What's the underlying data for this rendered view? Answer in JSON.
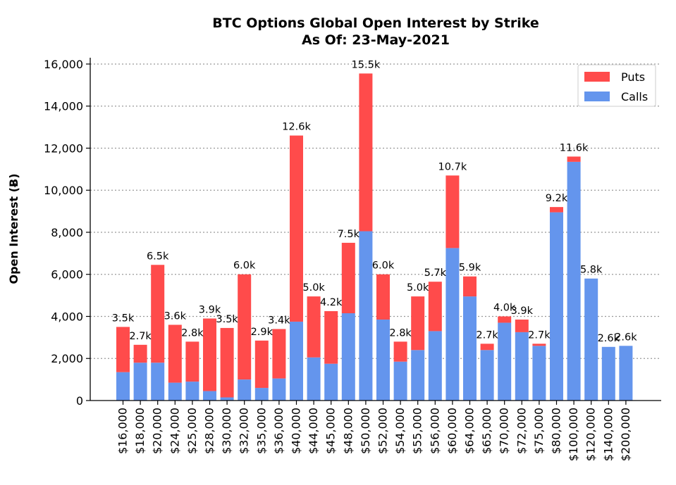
{
  "chart_data": {
    "type": "bar",
    "stacked": true,
    "title": "BTC Options Global Open Interest by Strike",
    "subtitle": "As Of: 23-May-2021",
    "xlabel": "",
    "ylabel": "Open Interest (Ƀ)",
    "ylim": [
      0,
      16300
    ],
    "yticks": [
      0,
      2000,
      4000,
      6000,
      8000,
      10000,
      12000,
      14000,
      16000
    ],
    "ytick_labels": [
      "0",
      "2,000",
      "4,000",
      "6,000",
      "8,000",
      "10,000",
      "12,000",
      "14,000",
      "16,000"
    ],
    "grid": "horizontal dotted",
    "legend_position": "top-right",
    "categories": [
      "$16,000",
      "$18,000",
      "$20,000",
      "$24,000",
      "$25,000",
      "$28,000",
      "$30,000",
      "$32,000",
      "$35,000",
      "$36,000",
      "$40,000",
      "$44,000",
      "$45,000",
      "$48,000",
      "$50,000",
      "$52,000",
      "$54,000",
      "$55,000",
      "$56,000",
      "$60,000",
      "$64,000",
      "$65,000",
      "$70,000",
      "$72,000",
      "$75,000",
      "$80,000",
      "$100,000",
      "$120,000",
      "$140,000",
      "$200,000"
    ],
    "series": [
      {
        "name": "Calls",
        "color": "#6495ED",
        "values": [
          1350,
          1800,
          1800,
          850,
          900,
          450,
          150,
          1000,
          600,
          1050,
          3750,
          2050,
          1750,
          4150,
          8050,
          3850,
          1850,
          2400,
          3300,
          7250,
          4950,
          2400,
          3700,
          3250,
          2600,
          8950,
          11350,
          5800,
          2550,
          2600
        ]
      },
      {
        "name": "Puts",
        "color": "#FF4B4B",
        "values": [
          2150,
          850,
          4650,
          2750,
          1900,
          3450,
          3300,
          5000,
          2250,
          2350,
          8850,
          2900,
          2500,
          3350,
          7500,
          2150,
          950,
          2550,
          2350,
          3450,
          950,
          300,
          300,
          600,
          100,
          250,
          250,
          0,
          0,
          0
        ]
      }
    ],
    "totals_labels": [
      "3.5k",
      "2.7k",
      "6.5k",
      "3.6k",
      "2.8k",
      "3.9k",
      "3.5k",
      "6.0k",
      "2.9k",
      "3.4k",
      "12.6k",
      "5.0k",
      "4.2k",
      "7.5k",
      "15.5k",
      "6.0k",
      "2.8k",
      "5.0k",
      "5.7k",
      "10.7k",
      "5.9k",
      "2.7k",
      "4.0k",
      "3.9k",
      "2.7k",
      "9.2k",
      "11.6k",
      "5.8k",
      "2.6k",
      "2.6k"
    ]
  }
}
